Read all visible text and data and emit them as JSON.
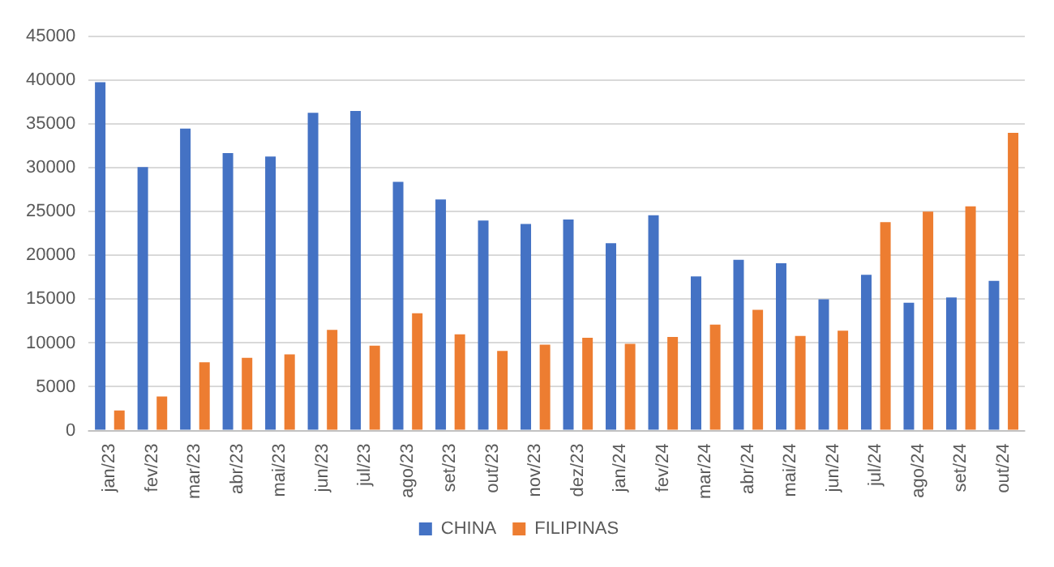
{
  "chart_data": {
    "type": "bar",
    "categories": [
      "jan/23",
      "fev/23",
      "mar/23",
      "abr/23",
      "mai/23",
      "jun/23",
      "jul/23",
      "ago/23",
      "set/23",
      "out/23",
      "nov/23",
      "dez/23",
      "jan/24",
      "fev/24",
      "mar/24",
      "abr/24",
      "mai/24",
      "jun/24",
      "jul/24",
      "ago/24",
      "set/24",
      "out/24"
    ],
    "series": [
      {
        "name": "CHINA",
        "color": "#4472c4",
        "values": [
          39800,
          30100,
          34500,
          31700,
          31300,
          36300,
          36500,
          28400,
          26400,
          24000,
          23600,
          24100,
          21400,
          24600,
          17600,
          19500,
          19100,
          15000,
          17800,
          14600,
          15200,
          17100
        ]
      },
      {
        "name": "FILIPINAS",
        "color": "#ed7d31",
        "values": [
          2300,
          3900,
          7800,
          8300,
          8700,
          11500,
          9700,
          13400,
          11000,
          9100,
          9800,
          10600,
          9900,
          10700,
          12100,
          13800,
          10800,
          11400,
          23800,
          25000,
          25600,
          34000
        ]
      }
    ],
    "ylim": [
      0,
      45000
    ],
    "yticks": [
      0,
      5000,
      10000,
      15000,
      20000,
      25000,
      30000,
      35000,
      40000,
      45000
    ],
    "grid": "y",
    "legend": "bottom"
  }
}
